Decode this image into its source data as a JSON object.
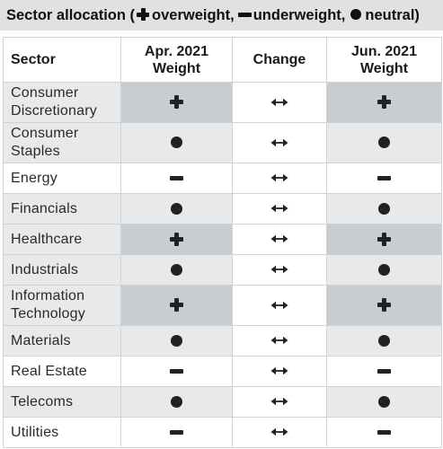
{
  "title": {
    "prefix": "Sector allocation (",
    "overweight": "overweight,",
    "underweight": "underweight,",
    "neutral": "neutral)"
  },
  "headers": {
    "sector": "Sector",
    "apr_line1": "Apr. 2021",
    "apr_line2": "Weight",
    "change": "Change",
    "jun_line1": "Jun. 2021",
    "jun_line2": "Weight"
  },
  "rows": [
    {
      "sector_line1": "Consumer",
      "sector_line2": "Discretionary",
      "apr": "overweight",
      "change": "unchanged",
      "jun": "overweight"
    },
    {
      "sector_line1": "Consumer",
      "sector_line2": "Staples",
      "apr": "neutral",
      "change": "unchanged",
      "jun": "neutral"
    },
    {
      "sector_line1": "Energy",
      "sector_line2": "",
      "apr": "underweight",
      "change": "unchanged",
      "jun": "underweight"
    },
    {
      "sector_line1": "Financials",
      "sector_line2": "",
      "apr": "neutral",
      "change": "unchanged",
      "jun": "neutral"
    },
    {
      "sector_line1": "Healthcare",
      "sector_line2": "",
      "apr": "overweight",
      "change": "unchanged",
      "jun": "overweight"
    },
    {
      "sector_line1": "Industrials",
      "sector_line2": "",
      "apr": "neutral",
      "change": "unchanged",
      "jun": "neutral"
    },
    {
      "sector_line1": "Information",
      "sector_line2": "Technology",
      "apr": "overweight",
      "change": "unchanged",
      "jun": "overweight"
    },
    {
      "sector_line1": "Materials",
      "sector_line2": "",
      "apr": "neutral",
      "change": "unchanged",
      "jun": "neutral"
    },
    {
      "sector_line1": "Real Estate",
      "sector_line2": "",
      "apr": "underweight",
      "change": "unchanged",
      "jun": "underweight"
    },
    {
      "sector_line1": "Telecoms",
      "sector_line2": "",
      "apr": "neutral",
      "change": "unchanged",
      "jun": "neutral"
    },
    {
      "sector_line1": "Utilities",
      "sector_line2": "",
      "apr": "underweight",
      "change": "unchanged",
      "jun": "underweight"
    }
  ],
  "icons": {
    "overweight": "plus-icon",
    "underweight": "minus-icon",
    "neutral": "dot-icon",
    "unchanged": "double-arrow-icon"
  },
  "colors": {
    "title_bg": "#dfe1e3",
    "overweight_bg": "#c8cdd1",
    "neutral_bg": "#e7e9eb",
    "border": "#cfd3d6"
  }
}
